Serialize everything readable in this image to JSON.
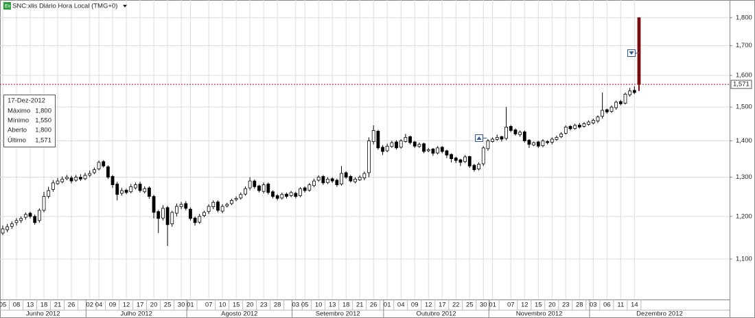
{
  "chart_data": {
    "type": "candlestick",
    "title": "SNC:xlis Diário Hora Local (TMG+0)",
    "log_scale": true,
    "grid": true,
    "up_color": "#ffffff",
    "down_color": "#000000",
    "outline_color": "#000000",
    "last_color": "#7b0c0c",
    "ylim": [
      1013,
      1866
    ],
    "yticks": [
      {
        "value": 1100,
        "label": "1,100"
      },
      {
        "value": 1200,
        "label": "1,200"
      },
      {
        "value": 1300,
        "label": "1,300"
      },
      {
        "value": 1400,
        "label": "1,400"
      },
      {
        "value": 1500,
        "label": "1,500"
      },
      {
        "value": 1600,
        "label": "1,600"
      },
      {
        "value": 1700,
        "label": "1,700"
      },
      {
        "value": 1800,
        "label": "1,800"
      }
    ],
    "last_price": {
      "value": 1571,
      "label": "1,571"
    },
    "months": [
      "Junho 2012",
      "Julho 2012",
      "Agosto 2012",
      "Setembro 2012",
      "Outubro 2012",
      "Novembro 2012",
      "Dezembro 2012"
    ],
    "categories": [
      "05",
      null,
      null,
      "08",
      null,
      null,
      "13",
      null,
      null,
      "18",
      null,
      null,
      "21",
      null,
      null,
      "26",
      null,
      null,
      null,
      "02",
      null,
      "04",
      null,
      null,
      "09",
      null,
      null,
      "12",
      null,
      null,
      "17",
      null,
      null,
      "20",
      null,
      null,
      "25",
      null,
      null,
      "30",
      null,
      "01",
      null,
      null,
      null,
      "07",
      null,
      null,
      "10",
      null,
      null,
      "15",
      null,
      null,
      "20",
      null,
      null,
      "23",
      null,
      null,
      "28",
      null,
      null,
      null,
      "03",
      null,
      "05",
      null,
      null,
      "10",
      null,
      null,
      "13",
      null,
      null,
      "18",
      null,
      null,
      "21",
      null,
      null,
      "26",
      null,
      null,
      "01",
      null,
      null,
      "04",
      null,
      null,
      "09",
      null,
      null,
      "12",
      null,
      null,
      "17",
      null,
      null,
      "22",
      null,
      null,
      "25",
      null,
      null,
      "30",
      null,
      "01",
      null,
      null,
      null,
      "07",
      null,
      null,
      "12",
      null,
      null,
      "15",
      null,
      null,
      "20",
      null,
      null,
      "23",
      null,
      null,
      "28",
      null,
      null,
      "03",
      null,
      null,
      "06",
      null,
      null,
      "11",
      null,
      null,
      "14",
      null
    ],
    "open": [
      1160,
      1168,
      1176,
      1185,
      1190,
      1198,
      1208,
      1200,
      1190,
      1215,
      1250,
      1268,
      1283,
      1288,
      1296,
      1298,
      1292,
      1300,
      1296,
      1305,
      1312,
      1322,
      1342,
      1328,
      1302,
      1282,
      1258,
      1266,
      1262,
      1272,
      1282,
      1262,
      1272,
      1250,
      1212,
      1196,
      1222,
      1182,
      1208,
      1224,
      1232,
      1218,
      1196,
      1186,
      1202,
      1212,
      1224,
      1236,
      1213,
      1226,
      1232,
      1242,
      1246,
      1256,
      1272,
      1290,
      1277,
      1263,
      1282,
      1262,
      1252,
      1246,
      1256,
      1252,
      1258,
      1252,
      1272,
      1266,
      1278,
      1292,
      1302,
      1286,
      1296,
      1292,
      1282,
      1312,
      1302,
      1288,
      1293,
      1298,
      1312,
      1398,
      1428,
      1382,
      1372,
      1384,
      1397,
      1382,
      1398,
      1412,
      1397,
      1384,
      1392,
      1372,
      1377,
      1366,
      1382,
      1372,
      1362,
      1352,
      1347,
      1342,
      1356,
      1332,
      1322,
      1336,
      1378,
      1398,
      1404,
      1412,
      1407,
      1442,
      1432,
      1418,
      1426,
      1402,
      1388,
      1397,
      1386,
      1398,
      1396,
      1404,
      1412,
      1422,
      1442,
      1436,
      1446,
      1442,
      1448,
      1452,
      1458,
      1472,
      1492,
      1487,
      1498,
      1517,
      1512,
      1538,
      1552,
      1800
    ],
    "high": [
      1178,
      1182,
      1188,
      1196,
      1200,
      1210,
      1212,
      1205,
      1220,
      1262,
      1275,
      1292,
      1298,
      1302,
      1306,
      1304,
      1306,
      1308,
      1312,
      1318,
      1326,
      1345,
      1346,
      1332,
      1306,
      1288,
      1272,
      1270,
      1282,
      1286,
      1288,
      1276,
      1276,
      1254,
      1216,
      1228,
      1226,
      1214,
      1232,
      1236,
      1238,
      1222,
      1200,
      1206,
      1214,
      1230,
      1240,
      1240,
      1230,
      1234,
      1244,
      1250,
      1260,
      1276,
      1300,
      1294,
      1280,
      1286,
      1286,
      1266,
      1256,
      1260,
      1260,
      1264,
      1262,
      1274,
      1276,
      1285,
      1296,
      1305,
      1306,
      1300,
      1300,
      1296,
      1330,
      1316,
      1306,
      1300,
      1305,
      1315,
      1410,
      1445,
      1432,
      1388,
      1392,
      1400,
      1402,
      1405,
      1420,
      1415,
      1400,
      1395,
      1395,
      1380,
      1380,
      1385,
      1385,
      1375,
      1365,
      1356,
      1350,
      1360,
      1358,
      1336,
      1340,
      1385,
      1405,
      1410,
      1418,
      1415,
      1500,
      1446,
      1436,
      1430,
      1430,
      1405,
      1398,
      1400,
      1405,
      1402,
      1410,
      1415,
      1425,
      1445,
      1446,
      1450,
      1452,
      1455,
      1460,
      1465,
      1475,
      1545,
      1495,
      1505,
      1520,
      1522,
      1545,
      1560,
      1565,
      1800
    ],
    "low": [
      1155,
      1162,
      1170,
      1178,
      1184,
      1192,
      1195,
      1180,
      1185,
      1210,
      1245,
      1262,
      1280,
      1284,
      1292,
      1284,
      1288,
      1290,
      1292,
      1300,
      1308,
      1318,
      1326,
      1295,
      1272,
      1240,
      1252,
      1256,
      1258,
      1268,
      1260,
      1258,
      1244,
      1195,
      1160,
      1190,
      1130,
      1175,
      1200,
      1218,
      1215,
      1190,
      1178,
      1182,
      1198,
      1206,
      1218,
      1210,
      1208,
      1222,
      1228,
      1238,
      1242,
      1252,
      1266,
      1270,
      1260,
      1258,
      1255,
      1245,
      1240,
      1242,
      1245,
      1248,
      1245,
      1248,
      1260,
      1262,
      1274,
      1288,
      1280,
      1282,
      1285,
      1275,
      1278,
      1296,
      1286,
      1284,
      1290,
      1292,
      1300,
      1390,
      1375,
      1360,
      1368,
      1380,
      1375,
      1378,
      1395,
      1390,
      1380,
      1380,
      1365,
      1368,
      1358,
      1362,
      1365,
      1352,
      1340,
      1338,
      1330,
      1338,
      1325,
      1315,
      1318,
      1330,
      1372,
      1395,
      1400,
      1398,
      1402,
      1425,
      1415,
      1412,
      1395,
      1380,
      1385,
      1380,
      1382,
      1390,
      1390,
      1400,
      1408,
      1418,
      1430,
      1432,
      1436,
      1438,
      1444,
      1448,
      1452,
      1465,
      1480,
      1482,
      1492,
      1505,
      1508,
      1532,
      1540,
      1550
    ],
    "close": [
      1170,
      1175,
      1182,
      1190,
      1195,
      1205,
      1200,
      1185,
      1215,
      1250,
      1265,
      1285,
      1290,
      1295,
      1300,
      1290,
      1300,
      1295,
      1305,
      1310,
      1320,
      1340,
      1330,
      1300,
      1280,
      1255,
      1265,
      1260,
      1275,
      1280,
      1265,
      1270,
      1250,
      1210,
      1195,
      1220,
      1180,
      1210,
      1225,
      1230,
      1220,
      1195,
      1185,
      1200,
      1210,
      1225,
      1235,
      1215,
      1225,
      1230,
      1240,
      1245,
      1255,
      1270,
      1290,
      1275,
      1265,
      1280,
      1260,
      1250,
      1245,
      1255,
      1250,
      1260,
      1250,
      1270,
      1265,
      1280,
      1290,
      1300,
      1285,
      1295,
      1290,
      1280,
      1310,
      1300,
      1290,
      1295,
      1300,
      1310,
      1400,
      1430,
      1380,
      1370,
      1385,
      1395,
      1380,
      1400,
      1410,
      1395,
      1385,
      1390,
      1370,
      1375,
      1365,
      1380,
      1370,
      1360,
      1350,
      1345,
      1340,
      1355,
      1330,
      1320,
      1335,
      1380,
      1400,
      1405,
      1410,
      1405,
      1440,
      1430,
      1420,
      1425,
      1400,
      1390,
      1395,
      1385,
      1400,
      1395,
      1405,
      1410,
      1420,
      1440,
      1435,
      1445,
      1440,
      1450,
      1455,
      1460,
      1470,
      1490,
      1485,
      1500,
      1515,
      1510,
      1540,
      1550,
      1545,
      1571
    ],
    "tooltip": {
      "title": "17-Dez-2012",
      "rows": [
        [
          "Máximo",
          "1,800"
        ],
        [
          "Mínimo",
          "1,550"
        ],
        [
          "Aberto",
          "1,800"
        ],
        [
          "Último",
          "1,571"
        ]
      ]
    }
  }
}
